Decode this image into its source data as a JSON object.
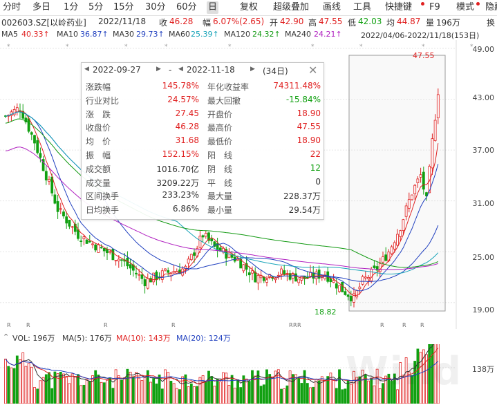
{
  "toolbar": {
    "items": [
      "分时",
      "多日",
      "1分",
      "5分",
      "15分",
      "30分",
      "60分",
      "日",
      "复权",
      "超级叠加",
      "画线",
      "工具",
      "快捷键",
      "F9",
      "模式",
      "隐藏"
    ],
    "active": "日"
  },
  "quote": {
    "code_name": "002603.SZ[以岭药业]",
    "date": "2022/11/18",
    "close_label": "收",
    "close": "46.28",
    "change_label": "幅",
    "change": "6.07%(2.65)",
    "open_label": "开",
    "open": "42.90",
    "high_label": "高",
    "high": "47.55",
    "low_label": "低",
    "low": "42.03",
    "avg_label": "均",
    "avg": "44.87",
    "vol_label": "量",
    "vol": "196万",
    "extra": "换"
  },
  "ma": {
    "items": [
      {
        "name": "MA5",
        "value": "40.33↑",
        "color": "#e02020"
      },
      {
        "name": "MA10",
        "value": "36.87↑",
        "color": "#1f3fbf"
      },
      {
        "name": "MA30",
        "value": "29.73↑",
        "color": "#1f3fbf"
      },
      {
        "name": "MA60",
        "value": "25.39↑",
        "color": "#16a3b8"
      },
      {
        "name": "MA120",
        "value": "24.32↑",
        "color": "#119911"
      },
      {
        "name": "MA240",
        "value": "24.21↑",
        "color": "#b020c0"
      }
    ],
    "range": "2022/04/06-2022/11/18(153日)"
  },
  "chart_data": {
    "type": "candlestick",
    "ylim": [
      18.0,
      49.0
    ],
    "yticks": [
      "49.00",
      "43.00",
      "37.00",
      "31.00",
      "25.00",
      "19.00"
    ],
    "annotations": {
      "high": "47.55",
      "low": "18.82"
    },
    "legend": "top-left"
  },
  "popup": {
    "start_date": "2022-09-27",
    "separator": "-",
    "end_date": "2022-11-18",
    "days": "(34日)",
    "rows": [
      {
        "k1": "涨跌幅",
        "v1": "145.78%",
        "c1": "red",
        "k2": "年化收益率",
        "v2": "74311.48%",
        "c2": "red"
      },
      {
        "k1": "行业对比",
        "v1": "24.57%",
        "c1": "red",
        "k2": "最大回撤",
        "v2": "-15.84%",
        "c2": "green"
      },
      {
        "k1": "涨　跌",
        "v1": "27.45",
        "c1": "red",
        "k2": "开盘价",
        "v2": "18.90",
        "c2": "red"
      },
      {
        "k1": "收盘价",
        "v1": "46.28",
        "c1": "red",
        "k2": "最高价",
        "v2": "47.55",
        "c2": "red"
      },
      {
        "k1": "均　价",
        "v1": "31.68",
        "c1": "red",
        "k2": "最低价",
        "v2": "18.90",
        "c2": "red"
      },
      {
        "k1": "振　幅",
        "v1": "152.15%",
        "c1": "red",
        "k2": "阳　线",
        "v2": "22",
        "c2": "red"
      },
      {
        "k1": "成交额",
        "v1": "1016.70亿",
        "c1": "",
        "k2": "阴　线",
        "v2": "12",
        "c2": "green"
      },
      {
        "k1": "成交量",
        "v1": "3209.22万",
        "c1": "",
        "k2": "平　线",
        "v2": "0",
        "c2": ""
      },
      {
        "k1": "区间换手",
        "v1": "233.23%",
        "c1": "",
        "k2": "最大量",
        "v2": "228.37万",
        "c2": ""
      },
      {
        "k1": "日均换手",
        "v1": "6.86%",
        "c1": "",
        "k2": "最小量",
        "v2": "29.54万",
        "c2": ""
      }
    ]
  },
  "volume": {
    "label": "VOL: 196万",
    "ma5": "MA(5): 176万",
    "ma10": "MA(10): 143万",
    "ma20": "MA(20): 124万",
    "ytick": "138万",
    "watermark": "Wind"
  }
}
